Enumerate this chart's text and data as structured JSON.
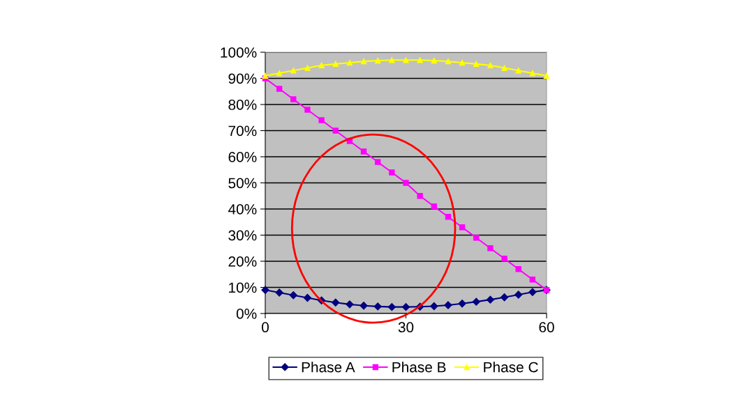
{
  "chart_data": {
    "type": "line",
    "x": [
      0,
      3,
      6,
      9,
      12,
      15,
      18,
      21,
      24,
      27,
      30,
      33,
      36,
      39,
      42,
      45,
      48,
      51,
      54,
      57,
      60
    ],
    "series": [
      {
        "name": "Phase A",
        "color": "#000080",
        "marker": "diamond",
        "values": [
          9,
          8,
          7,
          6,
          5,
          4.2,
          3.5,
          3,
          2.7,
          2.5,
          2.5,
          2.6,
          2.8,
          3.2,
          3.8,
          4.5,
          5.3,
          6.2,
          7.2,
          8.2,
          9
        ]
      },
      {
        "name": "Phase B",
        "color": "#ff00ff",
        "marker": "square",
        "values": [
          90,
          86,
          82,
          78,
          74,
          70,
          66,
          62,
          58,
          54,
          50,
          45,
          41,
          37,
          33,
          29,
          25,
          21,
          17,
          13,
          9
        ]
      },
      {
        "name": "Phase C",
        "color": "#ffff00",
        "marker": "triangle",
        "values": [
          91,
          92,
          93,
          94,
          95,
          95.5,
          96,
          96.5,
          96.8,
          97,
          97,
          97,
          96.8,
          96.5,
          96,
          95.5,
          95,
          94,
          93,
          92,
          91
        ]
      }
    ],
    "xlim": [
      0,
      60
    ],
    "xticks": [
      0,
      30,
      60
    ],
    "ylim": [
      0,
      100
    ],
    "yticks": [
      {
        "value": 0,
        "label": "0%"
      },
      {
        "value": 10,
        "label": "10%"
      },
      {
        "value": 20,
        "label": "20%"
      },
      {
        "value": 30,
        "label": "30%"
      },
      {
        "value": 40,
        "label": "40%"
      },
      {
        "value": 50,
        "label": "50%"
      },
      {
        "value": 60,
        "label": "60%"
      },
      {
        "value": 70,
        "label": "70%"
      },
      {
        "value": 80,
        "label": "80%"
      },
      {
        "value": 90,
        "label": "90%"
      },
      {
        "value": 100,
        "label": "100%"
      }
    ],
    "grid": "y",
    "legend": "bottom"
  }
}
